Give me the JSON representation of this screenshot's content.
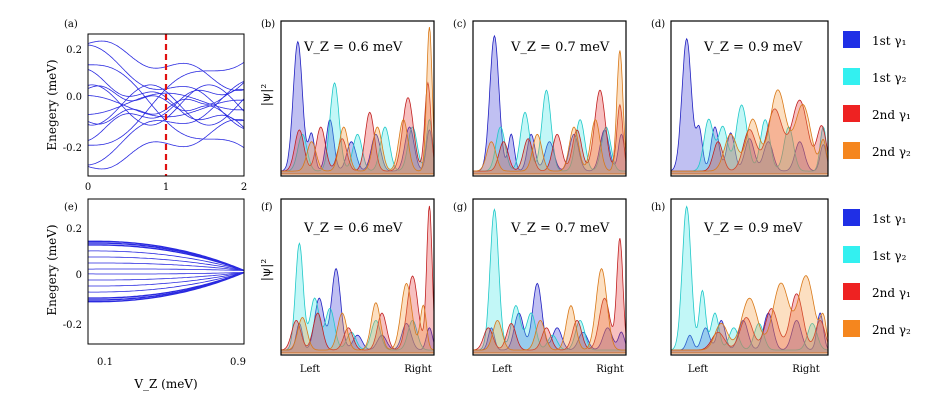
{
  "labels": {
    "energy_axis": "Enegery (meV)",
    "vz_axis": "V_Z (meV)",
    "psi_axis": "|ψ|²",
    "left": "Left",
    "right": "Right"
  },
  "panels_text": {
    "a": "(a)",
    "b": "(b)",
    "c": "(c)",
    "d": "(d)",
    "e": "(e)",
    "f": "(f)",
    "g": "(g)",
    "h": "(h)",
    "b_title": "V_Z = 0.6 meV",
    "c_title": "V_Z = 0.7 meV",
    "d_title": "V_Z = 0.9 meV",
    "f_title": "V_Z = 0.6 meV",
    "g_title": "V_Z = 0.7 meV",
    "h_title": "V_Z = 0.9 meV"
  },
  "legend": [
    {
      "label": "1st γ₁",
      "color": "#1f2fe6"
    },
    {
      "label": "1st γ₂",
      "color": "#33f0f0"
    },
    {
      "label": "2nd γ₁",
      "color": "#ee2222"
    },
    {
      "label": "2nd γ₂",
      "color": "#f5861e"
    }
  ],
  "chart_data": [
    {
      "id": "a",
      "type": "line",
      "xlim": [
        0,
        2
      ],
      "ylim": [
        -0.3,
        0.3
      ],
      "xticks": [
        "0",
        "1",
        "2"
      ],
      "yticks": [
        "-0.2",
        "0.0",
        "0.2"
      ],
      "ylabel": "Enegery (meV)",
      "marker_line_x": 1.0,
      "marker_color": "#e01010"
    },
    {
      "id": "e",
      "type": "line",
      "xlim": [
        0,
        1
      ],
      "ylim": [
        -0.3,
        0.3
      ],
      "xticks": [
        "0.1",
        "0.9"
      ],
      "yticks": [
        "-0.2",
        "0",
        "0.2"
      ],
      "ylabel": "Enegery (meV)",
      "xlabel": "V_Z (meV)"
    },
    {
      "id": "b",
      "type": "area",
      "title": "V_Z = 0.6 meV",
      "ylabel": "|ψ|²"
    },
    {
      "id": "c",
      "type": "area",
      "title": "V_Z = 0.7 meV"
    },
    {
      "id": "d",
      "type": "area",
      "title": "V_Z = 0.9 meV"
    },
    {
      "id": "f",
      "type": "area",
      "title": "V_Z = 0.6 meV",
      "ylabel": "|ψ|²",
      "xticks": [
        "Left",
        "Right"
      ]
    },
    {
      "id": "g",
      "type": "area",
      "title": "V_Z = 0.7 meV",
      "xticks": [
        "Left",
        "Right"
      ]
    },
    {
      "id": "h",
      "type": "area",
      "title": "V_Z = 0.9 meV",
      "xticks": [
        "Left",
        "Right"
      ]
    }
  ]
}
